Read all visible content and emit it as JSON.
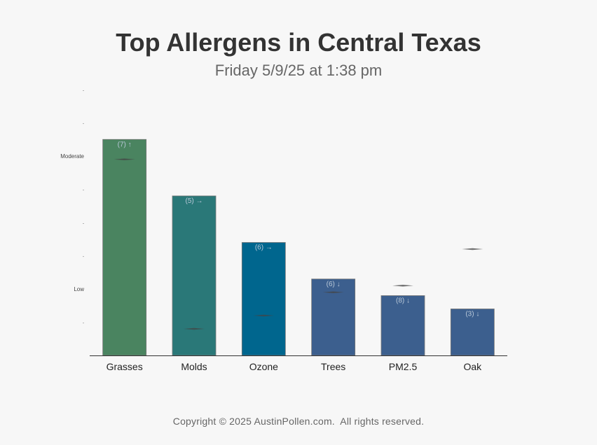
{
  "header": {
    "title": "Top Allergens in Central Texas",
    "subtitle": "Friday 5/9/25 at 1:38 pm"
  },
  "footer": {
    "copyright": "Copyright © 2025 AustinPollen.com.  All rights reserved."
  },
  "chart_data": {
    "type": "bar",
    "title": "Top Allergens in Central Texas",
    "subtitle": "Friday 5/9/25 at 1:38 pm",
    "categories": [
      "Grasses",
      "Molds",
      "Ozone",
      "Trees",
      "PM2.5",
      "Oak"
    ],
    "values": [
      6.5,
      4.8,
      3.4,
      2.3,
      1.8,
      1.4
    ],
    "bar_labels": [
      "(7) ↑",
      "(5) →",
      "(6) →",
      "(6) ↓",
      "(8) ↓",
      "(3) ↓"
    ],
    "bar_colors": [
      "#4a8460",
      "#2a7878",
      "#00668e",
      "#3c5f8e",
      "#3c5f8e",
      "#3c5f8e"
    ],
    "markers": [
      5.9,
      0.8,
      1.2,
      1.9,
      2.1,
      3.2
    ],
    "ylim": [
      0,
      8
    ],
    "y_ticks": [
      {
        "value": 1,
        "label": "-"
      },
      {
        "value": 2,
        "label": "Low"
      },
      {
        "value": 3,
        "label": "-"
      },
      {
        "value": 4,
        "label": "-"
      },
      {
        "value": 5,
        "label": "-"
      },
      {
        "value": 6,
        "label": "Moderate"
      },
      {
        "value": 7,
        "label": "-"
      },
      {
        "value": 8,
        "label": "-"
      }
    ],
    "xlabel": "",
    "ylabel": "",
    "grid": false,
    "legend": "none"
  }
}
